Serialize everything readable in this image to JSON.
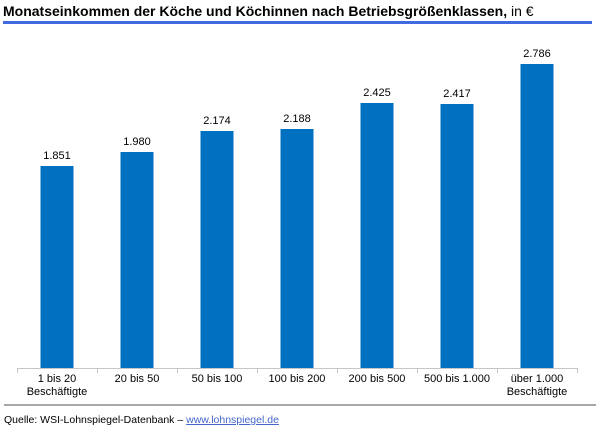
{
  "title": {
    "bold": "Monatseinkommen der Köche und Köchinnen nach Betriebsgrößenklassen,",
    "suffix": " in €"
  },
  "chart_data": {
    "type": "bar",
    "title": "Monatseinkommen der Köche und Köchinnen nach Betriebsgrößenklassen, in €",
    "categories": [
      "1 bis 20\nBeschäftigte",
      "20 bis 50",
      "50 bis 100",
      "100 bis 200",
      "200 bis 500",
      "500 bis 1.000",
      "über 1.000\nBeschäftigte"
    ],
    "values": [
      1851,
      1980,
      2174,
      2188,
      2425,
      2417,
      2786
    ],
    "value_labels": [
      "1.851",
      "1.980",
      "2.174",
      "2.188",
      "2.425",
      "2.417",
      "2.786"
    ],
    "xlabel": "",
    "ylabel": "",
    "unit": "€",
    "grid": false,
    "legend": false,
    "value_axis_visible": false,
    "bar_color": "#0070C0"
  },
  "footer": {
    "source_prefix": "Quelle: WSI-Lohnspiegel-Datenbank – ",
    "link": "www.lohnspiegel.de"
  },
  "colors": {
    "bar": "#0070C0",
    "title_underline": "#4169E1",
    "axis": "#C6C6C6",
    "separator": "#A8A8A8",
    "link": "#4466CC"
  }
}
